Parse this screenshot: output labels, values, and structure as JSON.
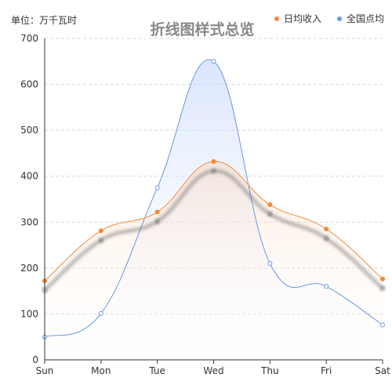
{
  "chart_data": {
    "type": "line",
    "title": "折线图样式总览",
    "unit_label": "单位：万千瓦时",
    "categories": [
      "Sun",
      "Mon",
      "Tue",
      "Wed",
      "Thu",
      "Fri",
      "Sat"
    ],
    "ylim": [
      0,
      700
    ],
    "y_ticks": [
      0,
      100,
      200,
      300,
      400,
      500,
      600,
      700
    ],
    "grid": true,
    "legend_position": "top-right",
    "series": [
      {
        "name": "日均收入",
        "color": "#f08a3c",
        "values": [
          172,
          281,
          322,
          432,
          338,
          285,
          176
        ],
        "area": true,
        "shadow": true
      },
      {
        "name": "全国点均",
        "color": "#6b95e8",
        "values": [
          50,
          101,
          375,
          650,
          210,
          160,
          76
        ],
        "area": true,
        "shadow": false
      }
    ]
  }
}
